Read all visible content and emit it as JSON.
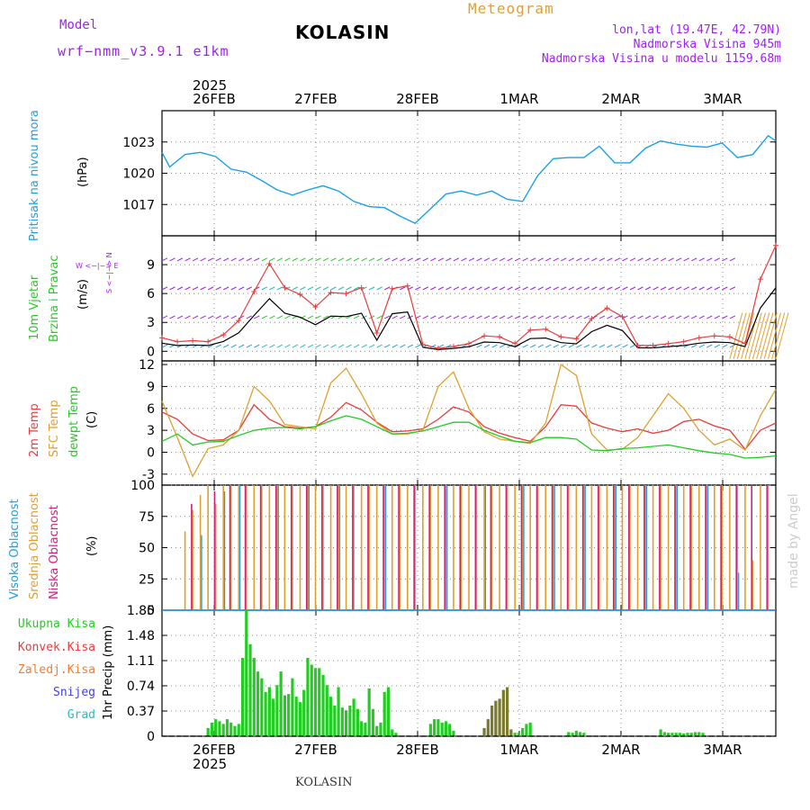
{
  "header": {
    "model_label": "Model",
    "model_name": "wrf−nmm_v3.9.1 e1km",
    "station": "KOLASIN",
    "meteogram": "Meteogram",
    "lonlat": "lon,lat (19.47E, 42.79N)",
    "altitude": "Nadmorska Visina 945m",
    "model_altitude": "Nadmorska Visina u modelu 1159.68m"
  },
  "footer": {
    "station": "KOLASIN",
    "made_by": "made by Angel"
  },
  "time_axis": {
    "year": "2025",
    "labels": [
      "26FEB",
      "27FEB",
      "28FEB",
      "1MAR",
      "2MAR",
      "3MAR"
    ],
    "range_hours": [
      -7,
      73
    ]
  },
  "panels": {
    "pressure": {
      "label": "Pritisak na nivou mora",
      "unit": "(hPa)"
    },
    "wind": {
      "label1": "10m Vjetar",
      "label2": "Brzina i Pravac",
      "unit": "(m/s)",
      "compass": "W <−|−> E",
      "ns": "S <−|−> N"
    },
    "temp": {
      "label1": "2m Temp",
      "label2": "SFC Temp",
      "label3": "dewpt Temp",
      "unit": "(C)"
    },
    "cloud": {
      "label1": "Visoka Oblacnost",
      "label2": "Srednja Oblacnost",
      "label3": "Niska Oblacnost",
      "unit": "(%)"
    },
    "precip": {
      "legend": [
        "Ukupna Kisa",
        "Konvek.Kisa",
        "Zaledj.Kisa",
        "Snijeg",
        "Grad"
      ],
      "unit": "1hr Precip (mm)"
    }
  },
  "colors": {
    "pressure": "#1aa0e6",
    "temp2m": "#e83c3c",
    "sfc": "#e0a030",
    "dewpt": "#22cc22",
    "high_cloud": "#1aa0e6",
    "mid_cloud": "#e0a030",
    "low_cloud": "#d0207a",
    "rain": "#22cc22",
    "conv": "#e83c3c",
    "frz": "#f07c30",
    "snow": "#4040e0",
    "hail": "#20c0c0",
    "wind_speed": "#e83c3c",
    "wind_mean": "#000000"
  },
  "chart_data": [
    {
      "type": "line",
      "title": "",
      "ylabel": "(hPa)",
      "ylim": [
        1014,
        1026
      ],
      "yticks": [
        1017,
        1020,
        1023
      ],
      "series": [
        {
          "name": "Pritisak na nivou mora",
          "x_hours": [
            -7,
            -6,
            -4,
            -2,
            0,
            2,
            4,
            6,
            8,
            10,
            12,
            14,
            16,
            18,
            20,
            22,
            24,
            26,
            28,
            30,
            32,
            34,
            36,
            38,
            40,
            42,
            44,
            46,
            48,
            50,
            52,
            54,
            56,
            58,
            60,
            62,
            64,
            66,
            68,
            70,
            72,
            73
          ],
          "values": [
            1022.0,
            1020.6,
            1021.8,
            1022.0,
            1021.6,
            1020.4,
            1020.1,
            1019.3,
            1018.4,
            1017.9,
            1018.4,
            1018.8,
            1018.3,
            1017.3,
            1016.8,
            1016.7,
            1015.9,
            1015.2,
            1016.6,
            1018.0,
            1018.3,
            1017.9,
            1018.3,
            1017.5,
            1017.3,
            1019.8,
            1021.4,
            1021.5,
            1021.5,
            1022.6,
            1021.0,
            1021.0,
            1022.4,
            1023.1,
            1022.8,
            1022.6,
            1022.5,
            1022.9,
            1021.5,
            1021.8,
            1023.6,
            1023.1
          ]
        }
      ]
    },
    {
      "type": "line",
      "title": "",
      "ylabel": "(m/s)",
      "ylim": [
        -1,
        12
      ],
      "yticks": [
        0,
        3,
        6,
        9
      ],
      "series": [
        {
          "name": "wind speed",
          "x_hours": [
            -7,
            -5,
            -3,
            -1,
            1,
            3,
            5,
            7,
            9,
            11,
            13,
            15,
            17,
            19,
            21,
            23,
            25,
            27,
            29,
            31,
            33,
            35,
            37,
            39,
            41,
            43,
            45,
            47,
            49,
            51,
            53,
            55,
            57,
            59,
            61,
            63,
            65,
            67,
            69,
            71,
            73
          ],
          "values": [
            1.4,
            1.0,
            1.1,
            1.0,
            1.7,
            3.2,
            6.2,
            9.1,
            6.6,
            5.9,
            4.6,
            6.1,
            6.0,
            6.6,
            1.9,
            6.5,
            6.8,
            0.7,
            0.3,
            0.5,
            0.8,
            1.6,
            1.5,
            0.8,
            2.2,
            2.3,
            1.5,
            1.3,
            3.4,
            4.5,
            3.6,
            0.6,
            0.6,
            0.8,
            1.0,
            1.4,
            1.6,
            1.5,
            0.8,
            7.5,
            11.0
          ]
        }
      ]
    },
    {
      "type": "line",
      "title": "",
      "ylabel": "(C)",
      "ylim": [
        -4.5,
        12.5
      ],
      "yticks": [
        -3,
        0,
        3,
        6,
        9,
        12
      ],
      "x_hours": [
        -7,
        -5,
        -3,
        -1,
        1,
        3,
        5,
        7,
        9,
        11,
        13,
        15,
        17,
        19,
        21,
        23,
        25,
        27,
        29,
        31,
        33,
        35,
        37,
        39,
        41,
        43,
        45,
        47,
        49,
        51,
        53,
        55,
        57,
        59,
        61,
        63,
        65,
        67,
        69,
        71,
        73
      ],
      "series": [
        {
          "name": "2m Temp",
          "values": [
            5.5,
            4.5,
            2.5,
            1.6,
            1.7,
            3.0,
            6.5,
            4.5,
            3.5,
            3.3,
            3.5,
            4.8,
            6.8,
            5.8,
            4.1,
            2.8,
            2.9,
            3.2,
            4.5,
            6.2,
            5.5,
            3.5,
            2.6,
            2.0,
            1.5,
            3.5,
            6.5,
            6.3,
            4.0,
            3.3,
            2.8,
            3.2,
            2.6,
            3.0,
            4.2,
            4.5,
            3.6,
            3.0,
            0.4,
            3.0,
            4.0
          ]
        },
        {
          "name": "SFC Temp",
          "values": [
            7.0,
            2.0,
            -3.3,
            0.5,
            1.0,
            3.0,
            9.0,
            7.0,
            3.8,
            3.5,
            3.2,
            9.5,
            11.5,
            8.0,
            4.0,
            2.5,
            2.5,
            3.0,
            9.0,
            11.0,
            6.0,
            2.8,
            1.8,
            1.5,
            1.2,
            4.0,
            12.0,
            10.5,
            2.5,
            0.3,
            0.4,
            2.0,
            5.0,
            8.0,
            6.0,
            3.0,
            1.0,
            1.8,
            0.3,
            5.0,
            8.6
          ]
        },
        {
          "name": "dewpt Temp",
          "values": [
            1.5,
            2.5,
            1.0,
            1.4,
            1.5,
            2.3,
            3.0,
            3.3,
            3.4,
            3.2,
            3.5,
            4.3,
            5.0,
            4.5,
            3.5,
            2.5,
            2.6,
            2.9,
            3.5,
            4.1,
            4.1,
            3.0,
            2.2,
            1.5,
            1.3,
            2.0,
            2.0,
            1.8,
            0.3,
            0.2,
            0.5,
            0.6,
            0.8,
            1.0,
            0.6,
            0.2,
            -0.1,
            -0.3,
            -0.8,
            -0.7,
            -0.5
          ]
        }
      ]
    },
    {
      "type": "bar",
      "title": "",
      "ylabel": "(%)",
      "ylim": [
        0,
        100
      ],
      "yticks": [
        0,
        25,
        50,
        75,
        100
      ],
      "series": [
        {
          "name": "Visoka Oblacnost",
          "x_hours": [
            -2,
            1,
            3,
            8,
            12,
            16,
            22,
            30,
            35,
            40,
            44,
            48,
            52,
            56,
            60,
            64,
            68
          ],
          "values": [
            60,
            95,
            100,
            100,
            100,
            100,
            100,
            100,
            100,
            100,
            100,
            100,
            100,
            100,
            100,
            100,
            30
          ]
        },
        {
          "name": "Srednja Oblacnost",
          "x_hours": [
            -4,
            -3,
            -2,
            -1,
            0,
            1,
            2,
            3,
            4,
            5,
            6,
            7,
            8,
            9,
            10,
            11,
            12,
            13,
            14,
            15,
            16,
            17,
            18,
            19,
            20,
            21,
            22,
            23,
            24,
            25,
            26,
            27,
            28,
            29,
            30,
            31,
            32,
            33,
            34,
            35,
            36,
            37,
            38,
            39,
            40,
            41,
            42,
            43,
            44,
            45,
            46,
            47,
            48,
            49,
            50,
            51,
            52,
            53,
            54,
            55,
            56,
            57,
            58,
            59,
            60,
            61,
            62,
            63,
            64,
            65,
            66,
            67,
            68,
            69,
            70,
            71,
            72
          ],
          "values": [
            63,
            80,
            92,
            100,
            85,
            100,
            100,
            100,
            100,
            100,
            100,
            100,
            100,
            100,
            100,
            100,
            100,
            100,
            100,
            100,
            100,
            100,
            100,
            100,
            100,
            100,
            100,
            100,
            100,
            100,
            100,
            100,
            100,
            100,
            100,
            100,
            100,
            100,
            100,
            100,
            100,
            100,
            100,
            100,
            100,
            100,
            100,
            100,
            100,
            100,
            100,
            100,
            100,
            100,
            100,
            100,
            100,
            100,
            100,
            100,
            100,
            100,
            100,
            100,
            100,
            100,
            100,
            100,
            100,
            100,
            100,
            100,
            100,
            100,
            40,
            100,
            100
          ]
        },
        {
          "name": "Niska Oblacnost",
          "x_hours": [
            -3,
            0,
            2,
            4,
            6,
            8,
            10,
            12,
            14,
            16,
            18,
            20,
            22,
            24,
            26,
            28,
            30,
            32,
            34,
            36,
            38,
            40,
            42,
            44,
            46,
            48,
            50,
            52,
            54,
            56,
            58,
            60,
            62,
            64,
            66,
            68,
            70,
            72
          ],
          "values": [
            85,
            95,
            100,
            100,
            100,
            100,
            100,
            100,
            100,
            100,
            100,
            100,
            100,
            100,
            100,
            100,
            100,
            100,
            100,
            100,
            100,
            100,
            100,
            100,
            100,
            100,
            100,
            100,
            100,
            100,
            100,
            100,
            100,
            100,
            100,
            100,
            100,
            100
          ]
        }
      ]
    },
    {
      "type": "bar",
      "title": "",
      "ylabel": "1hr Precip (mm)",
      "ylim": [
        0,
        1.85
      ],
      "yticks": [
        0,
        0.37,
        0.74,
        1.11,
        1.48,
        1.85
      ],
      "x_hours": [
        -1,
        -0.5,
        0,
        0.5,
        1,
        1.5,
        2,
        2.5,
        3,
        3.5,
        4,
        4.5,
        5,
        5.5,
        6,
        6.5,
        7,
        7.5,
        8,
        8.5,
        9,
        9.5,
        10,
        10.5,
        11,
        11.5,
        12,
        12.5,
        13,
        13.5,
        14,
        14.5,
        15,
        15.5,
        16,
        16.5,
        17,
        17.5,
        18,
        18.5,
        19,
        19.5,
        20,
        20.5,
        21,
        21.5,
        22,
        22.5,
        23,
        23.5,
        28,
        28.5,
        29,
        29.5,
        30,
        30.5,
        31,
        35,
        35.5,
        36,
        36.5,
        37,
        37.5,
        38,
        38.5,
        39,
        39.5,
        40,
        40.5,
        41,
        46,
        46.5,
        47,
        47.5,
        48,
        58,
        58.5,
        59,
        59.5,
        60,
        60.5,
        61,
        61.5,
        62,
        62.5,
        63,
        63.5
      ],
      "series": [
        {
          "name": "Ukupna Kisa",
          "values": [
            0.12,
            0.2,
            0.25,
            0.22,
            0.18,
            0.25,
            0.2,
            0.15,
            0.18,
            1.15,
            1.85,
            1.35,
            1.15,
            0.95,
            0.85,
            0.65,
            0.72,
            0.55,
            0.75,
            0.95,
            0.6,
            0.62,
            0.85,
            0.58,
            0.5,
            0.68,
            1.15,
            1.05,
            1.0,
            1.0,
            0.9,
            0.75,
            0.58,
            0.45,
            0.72,
            0.42,
            0.38,
            0.45,
            0.55,
            0.4,
            0.22,
            0.2,
            0.7,
            0.4,
            0.15,
            0.2,
            0.65,
            0.72,
            0.1,
            0.05,
            0.18,
            0.25,
            0.25,
            0.2,
            0.22,
            0.18,
            0.08,
            0.12,
            0.25,
            0.45,
            0.52,
            0.55,
            0.68,
            0.72,
            0.1,
            0.05,
            0.05,
            0.12,
            0.18,
            0.2,
            0.06,
            0.05,
            0.08,
            0.06,
            0.05,
            0.1,
            0.06,
            0.05,
            0.05,
            0.05,
            0.05,
            0.04,
            0.05,
            0.05,
            0.06,
            0.06,
            0.05
          ]
        }
      ]
    }
  ]
}
